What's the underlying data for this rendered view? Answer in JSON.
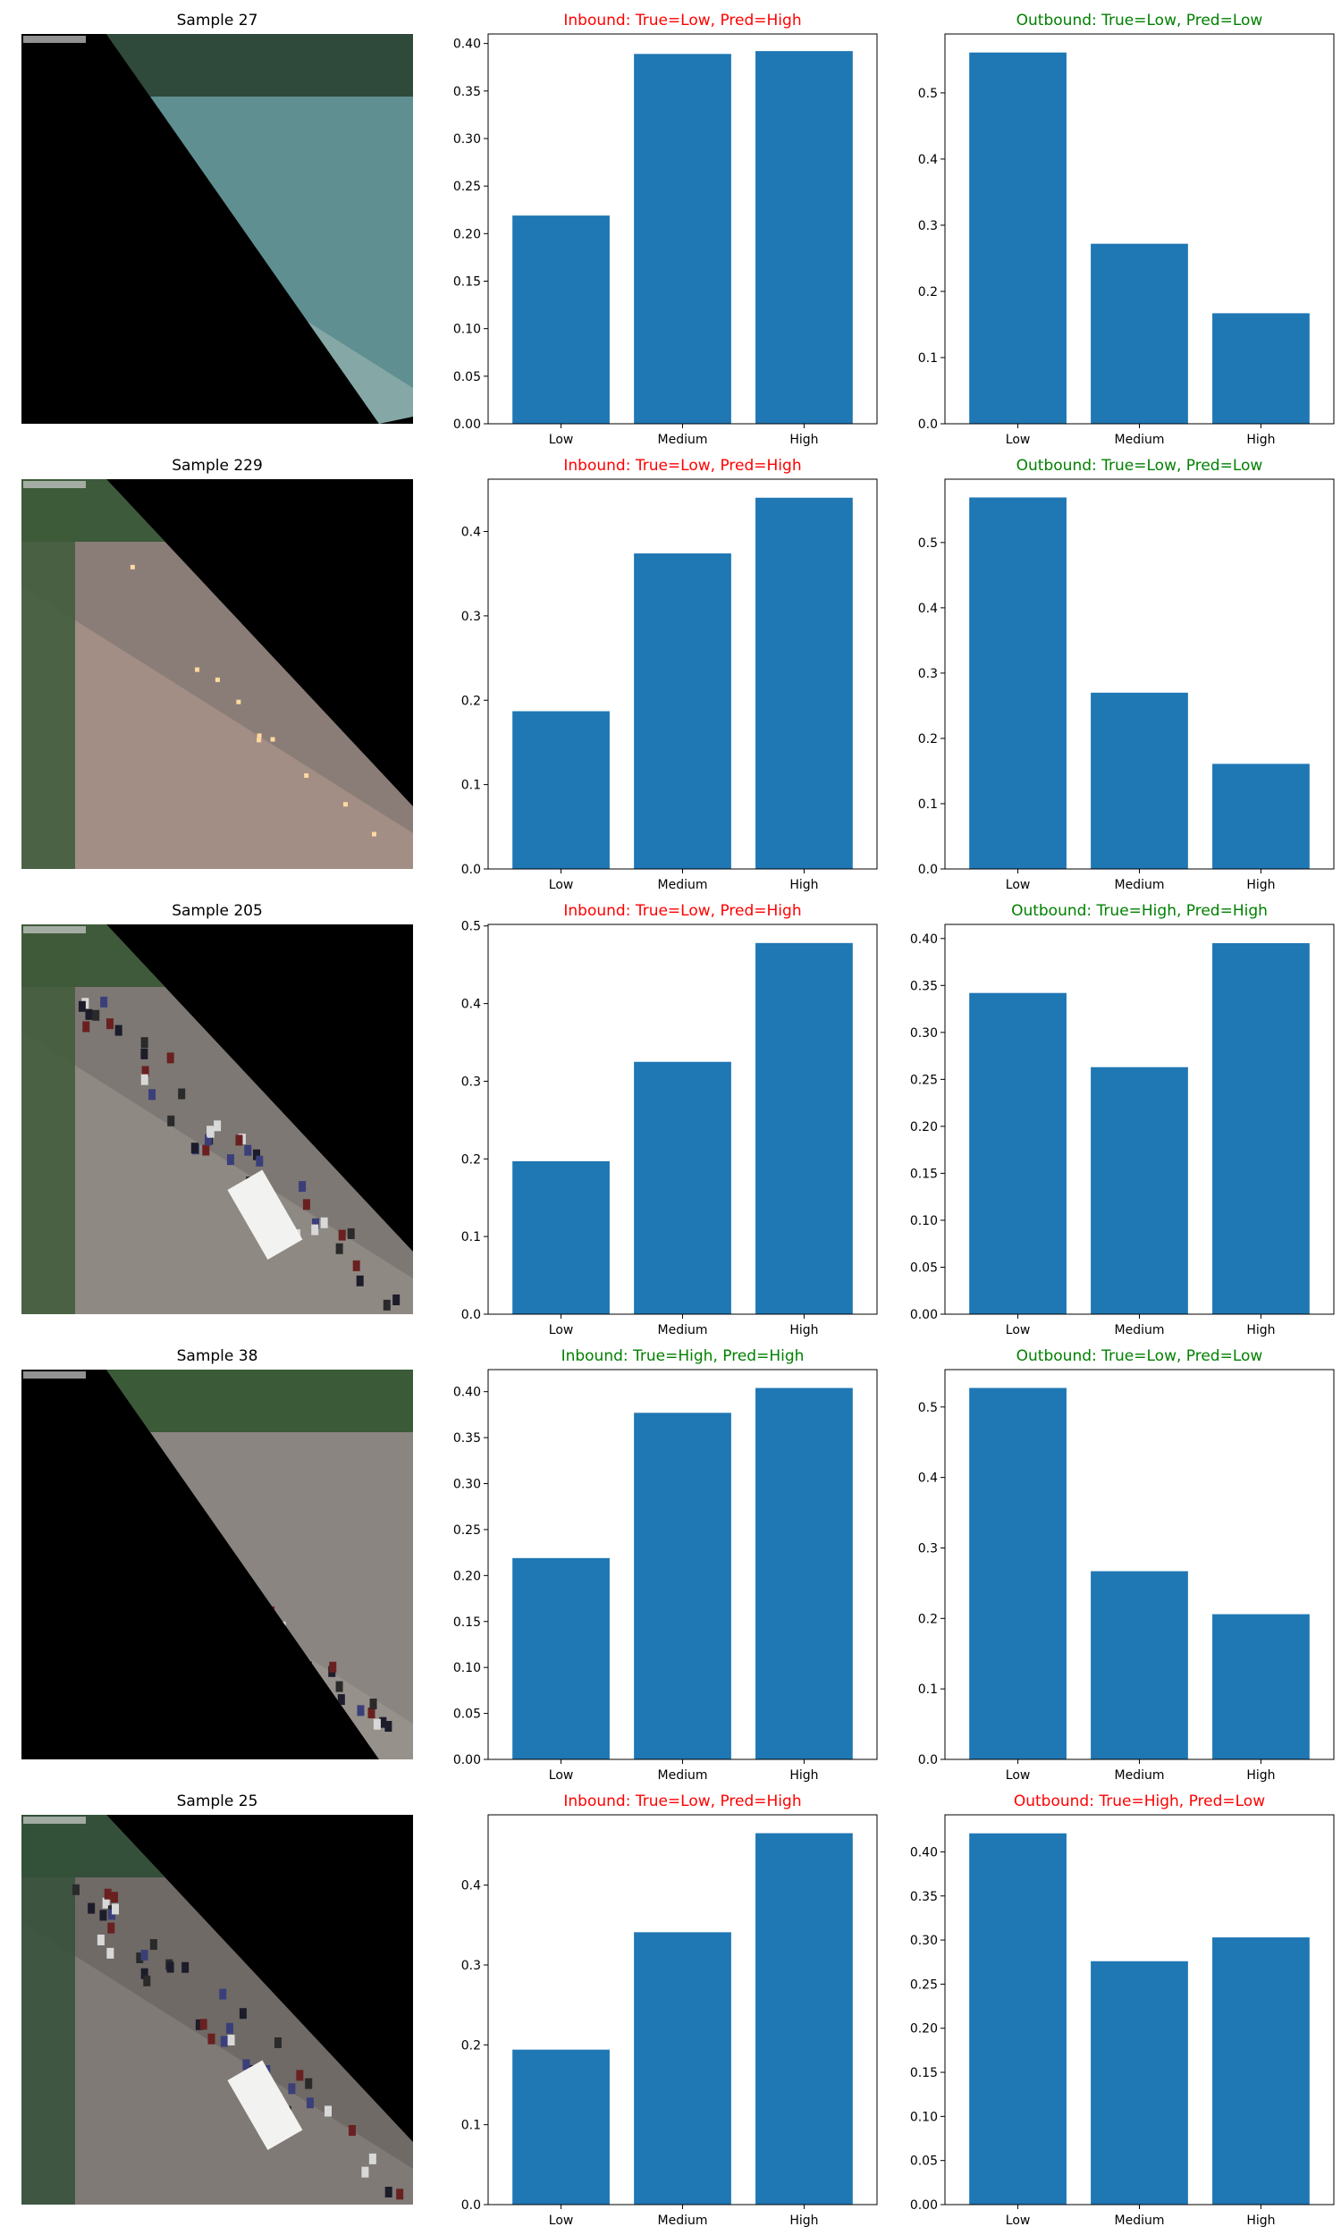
{
  "colors": {
    "bar": "#1f77b4",
    "correct": "#008000",
    "incorrect": "#ff0000",
    "axis": "#000000"
  },
  "rows": [
    {
      "sample_title": "Sample 27",
      "image": {
        "scene": "night-street",
        "sky": "#2f3a36",
        "road": "#5f8f90",
        "road2": "#9fb8b5",
        "trees": "#2f4a3a",
        "lights": "#e0f0ff"
      },
      "charts": [
        {
          "title": "Inbound: True=Low, Pred=High",
          "status": "incorrect",
          "type": "bar",
          "categories": [
            "Low",
            "Medium",
            "High"
          ],
          "values": [
            0.219,
            0.389,
            0.392
          ],
          "ylim": [
            0,
            0.41
          ],
          "yticks": [
            0.0,
            0.05,
            0.1,
            0.15,
            0.2,
            0.25,
            0.3,
            0.35,
            0.4
          ],
          "tick_decimals": 2
        },
        {
          "title": "Outbound: True=Low, Pred=Low",
          "status": "correct",
          "type": "bar",
          "categories": [
            "Low",
            "Medium",
            "High"
          ],
          "values": [
            0.561,
            0.272,
            0.167
          ],
          "ylim": [
            0,
            0.589
          ],
          "yticks": [
            0.0,
            0.1,
            0.2,
            0.3,
            0.4,
            0.5
          ],
          "tick_decimals": 1
        }
      ]
    },
    {
      "sample_title": "Sample 229",
      "image": {
        "scene": "wet-street",
        "sky": "#3a3f3a",
        "road": "#8a7d78",
        "road2": "#b39a8c",
        "trees": "#3d5a3a",
        "lights": "#ffd9a0"
      },
      "charts": [
        {
          "title": "Inbound: True=Low, Pred=High",
          "status": "incorrect",
          "type": "bar",
          "categories": [
            "Low",
            "Medium",
            "High"
          ],
          "values": [
            0.187,
            0.374,
            0.44
          ],
          "ylim": [
            0,
            0.462
          ],
          "yticks": [
            0.0,
            0.1,
            0.2,
            0.3,
            0.4
          ],
          "tick_decimals": 1
        },
        {
          "title": "Outbound: True=Low, Pred=Low",
          "status": "correct",
          "type": "bar",
          "categories": [
            "Low",
            "Medium",
            "High"
          ],
          "values": [
            0.569,
            0.27,
            0.161
          ],
          "ylim": [
            0,
            0.597
          ],
          "yticks": [
            0.0,
            0.1,
            0.2,
            0.3,
            0.4,
            0.5
          ],
          "tick_decimals": 1
        }
      ]
    },
    {
      "sample_title": "Sample 205",
      "image": {
        "scene": "day-traffic",
        "sky": "#4a5a48",
        "road": "#7d7873",
        "road2": "#9a948c",
        "trees": "#3f5a3a",
        "lights": "#f2f2f2"
      },
      "charts": [
        {
          "title": "Inbound: True=Low, Pred=High",
          "status": "incorrect",
          "type": "bar",
          "categories": [
            "Low",
            "Medium",
            "High"
          ],
          "values": [
            0.197,
            0.325,
            0.478
          ],
          "ylim": [
            0,
            0.502
          ],
          "yticks": [
            0.0,
            0.1,
            0.2,
            0.3,
            0.4,
            0.5
          ],
          "tick_decimals": 1
        },
        {
          "title": "Outbound: True=High, Pred=High",
          "status": "correct",
          "type": "bar",
          "categories": [
            "Low",
            "Medium",
            "High"
          ],
          "values": [
            0.342,
            0.263,
            0.395
          ],
          "ylim": [
            0,
            0.415
          ],
          "yticks": [
            0.0,
            0.05,
            0.1,
            0.15,
            0.2,
            0.25,
            0.3,
            0.35,
            0.4
          ],
          "tick_decimals": 2
        }
      ]
    },
    {
      "sample_title": "Sample 38",
      "image": {
        "scene": "day-traffic",
        "sky": "#4d6a4a",
        "road": "#8a8580",
        "road2": "#a09a92",
        "trees": "#3a5a38",
        "lights": "#e8e8e8"
      },
      "charts": [
        {
          "title": "Inbound: True=High, Pred=High",
          "status": "correct",
          "type": "bar",
          "categories": [
            "Low",
            "Medium",
            "High"
          ],
          "values": [
            0.219,
            0.377,
            0.404
          ],
          "ylim": [
            0,
            0.424
          ],
          "yticks": [
            0.0,
            0.05,
            0.1,
            0.15,
            0.2,
            0.25,
            0.3,
            0.35,
            0.4
          ],
          "tick_decimals": 2
        },
        {
          "title": "Outbound: True=Low, Pred=Low",
          "status": "correct",
          "type": "bar",
          "categories": [
            "Low",
            "Medium",
            "High"
          ],
          "values": [
            0.527,
            0.267,
            0.206
          ],
          "ylim": [
            0,
            0.553
          ],
          "yticks": [
            0.0,
            0.1,
            0.2,
            0.3,
            0.4,
            0.5
          ],
          "tick_decimals": 1
        }
      ]
    },
    {
      "sample_title": "Sample 25",
      "image": {
        "scene": "day-traffic",
        "sky": "#3f4f3c",
        "road": "#6f6a66",
        "road2": "#8c8680",
        "trees": "#34503a",
        "lights": "#f0f0f0"
      },
      "charts": [
        {
          "title": "Inbound: True=Low, Pred=High",
          "status": "incorrect",
          "type": "bar",
          "categories": [
            "Low",
            "Medium",
            "High"
          ],
          "values": [
            0.194,
            0.341,
            0.465
          ],
          "ylim": [
            0,
            0.488
          ],
          "yticks": [
            0.0,
            0.1,
            0.2,
            0.3,
            0.4
          ],
          "tick_decimals": 1
        },
        {
          "title": "Outbound: True=High, Pred=Low",
          "status": "incorrect",
          "type": "bar",
          "categories": [
            "Low",
            "Medium",
            "High"
          ],
          "values": [
            0.421,
            0.276,
            0.303
          ],
          "ylim": [
            0,
            0.442
          ],
          "yticks": [
            0.0,
            0.05,
            0.1,
            0.15,
            0.2,
            0.25,
            0.3,
            0.35,
            0.4
          ],
          "tick_decimals": 2
        }
      ]
    }
  ]
}
